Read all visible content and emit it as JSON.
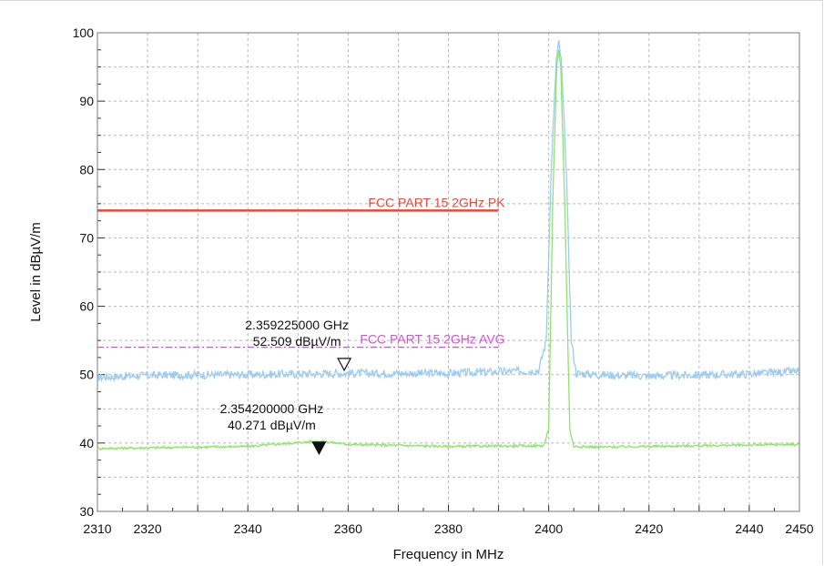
{
  "chart_data": {
    "type": "line",
    "xlabel": "Frequency in MHz",
    "ylabel": "Level in dBµV/m",
    "xlim": [
      2310,
      2450
    ],
    "ylim": [
      30,
      100
    ],
    "x_ticks": [
      2310,
      2320,
      2340,
      2360,
      2380,
      2400,
      2420,
      2440,
      2450
    ],
    "y_ticks": [
      30,
      40,
      50,
      60,
      70,
      80,
      90,
      100
    ],
    "grid": true,
    "limit_lines": [
      {
        "name": "FCC PART 15 2GHz  PK",
        "x": [
          2310,
          2390
        ],
        "y": 74,
        "color": "#e8473a",
        "style": "solid"
      },
      {
        "name": "FCC PART 15 2GHz  AVG",
        "x": [
          2310,
          2390
        ],
        "y": 54,
        "color": "#d24fd6",
        "style": "dashdot"
      }
    ],
    "series": [
      {
        "color": "#9ccbf2",
        "x": [
          2310,
          2320,
          2340,
          2360,
          2380,
          2398,
          2399.5,
          2400.5,
          2401.5,
          2402,
          2402.5,
          2403.5,
          2404.5,
          2405.5,
          2410,
          2420,
          2440,
          2450
        ],
        "values": [
          49.6,
          49.9,
          50.0,
          50.2,
          50.2,
          50.6,
          55,
          80,
          96,
          98.5,
          96,
          80,
          55,
          50.2,
          50.0,
          49.8,
          50.1,
          50.5
        ]
      },
      {
        "color": "#8fe36a",
        "x": [
          2310,
          2320,
          2340,
          2354.2,
          2360,
          2380,
          2399,
          2400,
          2400.8,
          2401.6,
          2402,
          2402.4,
          2403.2,
          2404.2,
          2405,
          2410,
          2420,
          2440,
          2450
        ],
        "values": [
          39.2,
          39.3,
          39.5,
          40.3,
          39.8,
          39.5,
          39.6,
          42,
          75,
          95,
          97.5,
          95,
          75,
          42,
          39.5,
          39.4,
          39.5,
          39.7,
          39.8
        ]
      }
    ],
    "markers": [
      {
        "freq_label": "2.359225000 GHz",
        "level_label": "52.509 dBµV/m",
        "x": 2359.225,
        "y": 52.509,
        "filled": false
      },
      {
        "freq_label": "2.354200000 GHz",
        "level_label": "40.271 dBµV/m",
        "x": 2354.2,
        "y": 40.271,
        "filled": true
      }
    ]
  }
}
